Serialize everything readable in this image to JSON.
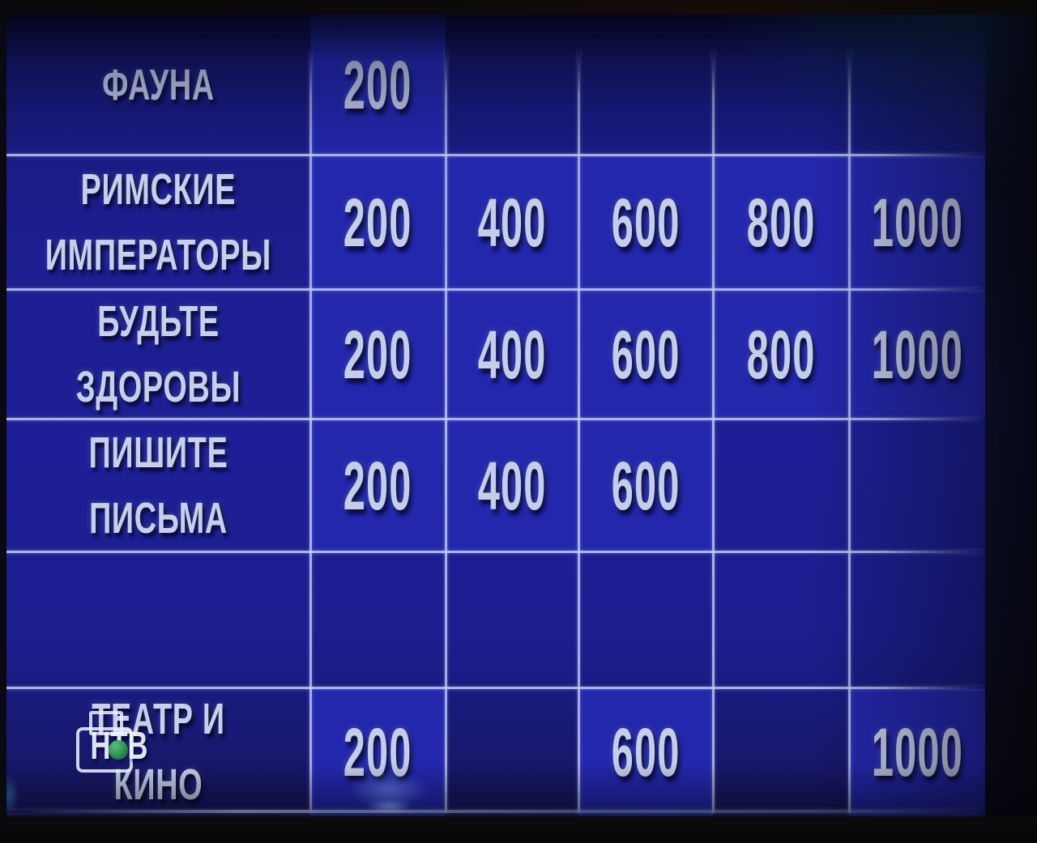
{
  "board": {
    "categories": [
      {
        "label": "ФАУНА",
        "values": [
          "200",
          "",
          "",
          "",
          ""
        ]
      },
      {
        "label": "РИМСКИЕ ИМПЕРАТОРЫ",
        "values": [
          "200",
          "400",
          "600",
          "800",
          "1000"
        ]
      },
      {
        "label": "БУДЬТЕ ЗДОРОВЫ",
        "values": [
          "200",
          "400",
          "600",
          "800",
          "1000"
        ]
      },
      {
        "label": "ПИШИТЕ ПИСЬМА",
        "values": [
          "200",
          "400",
          "600",
          "",
          ""
        ]
      },
      {
        "label": "",
        "values": [
          "",
          "",
          "",
          "",
          ""
        ]
      },
      {
        "label": "ТЕАТР И КИНО",
        "values": [
          "200",
          "",
          "600",
          "",
          "1000"
        ]
      }
    ]
  },
  "watermark": {
    "channel_logo_text": "НТВ"
  },
  "colors": {
    "board_blue": "#1e1f96",
    "cell_bright_blue": "#2327ac",
    "grid_line": "#c4cee8",
    "text": "#c6d0ea",
    "logo_green": "#2f9a55",
    "background": "#060607"
  }
}
